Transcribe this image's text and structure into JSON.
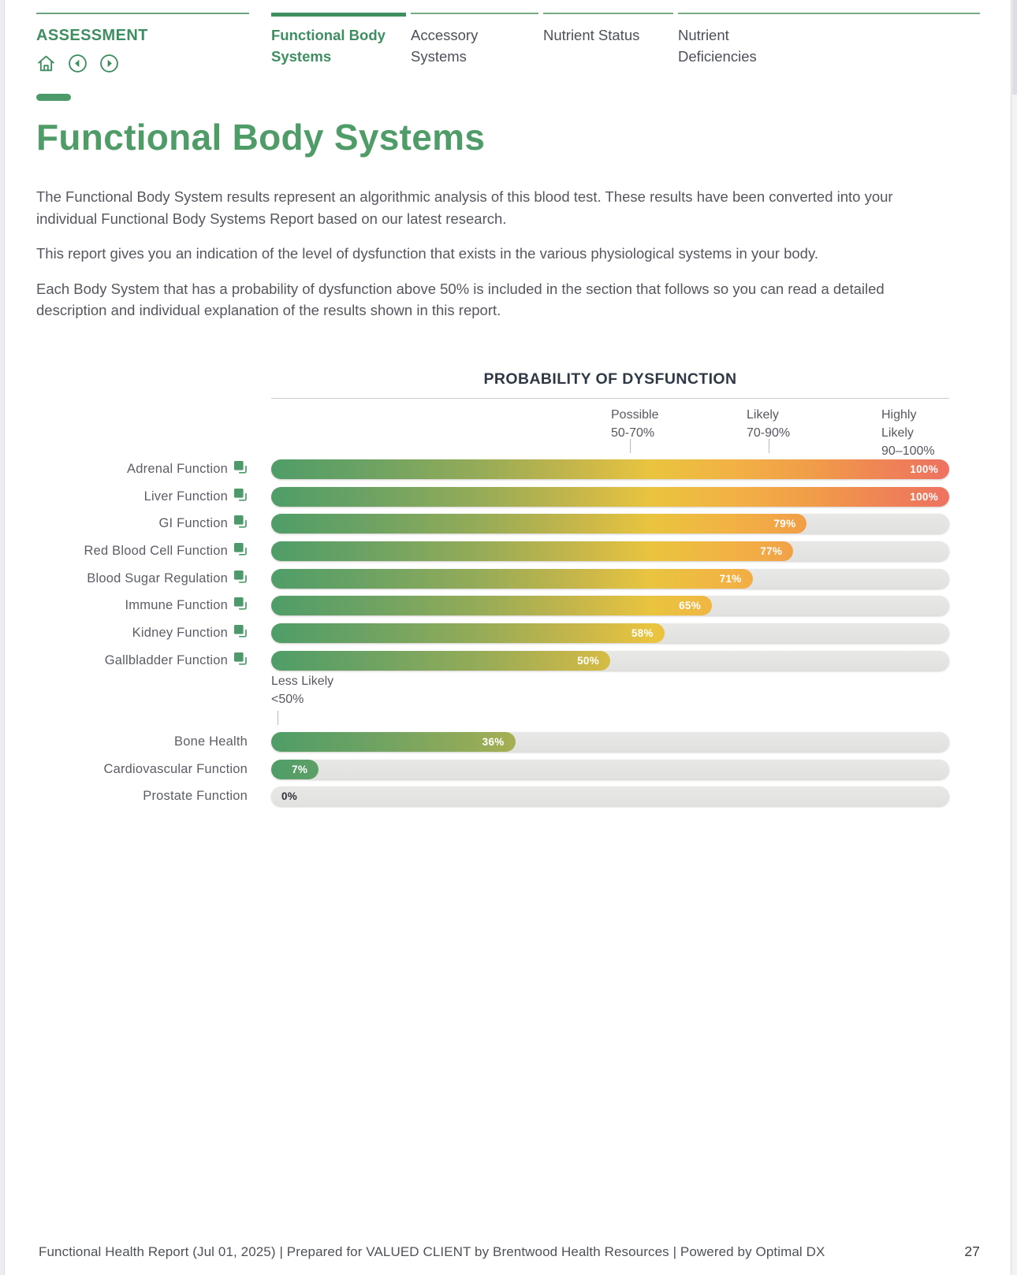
{
  "nav": {
    "section_label": "ASSESSMENT",
    "icons": [
      "home-icon",
      "prev-page-icon",
      "next-page-icon"
    ],
    "tabs": [
      {
        "label": "Functional Body Systems",
        "active": true
      },
      {
        "label": "Accessory Systems",
        "active": false
      },
      {
        "label": "Nutrient Status",
        "active": false
      },
      {
        "label": "Nutrient Deficiencies",
        "active": false
      }
    ]
  },
  "page": {
    "title": "Functional Body Systems",
    "paragraphs": [
      "The Functional Body System results represent an algorithmic analysis of this blood test. These results have been converted into your individual Functional Body Systems Report based on our latest research.",
      "This report gives you an indication of the level of dysfunction that exists in the various physiological systems in your body.",
      "Each Body System that has a probability of dysfunction above 50% is included in the section that follows so you can read a detailed description and individual explanation of the results shown in this report."
    ]
  },
  "chart_data": {
    "type": "bar",
    "orientation": "horizontal",
    "title": "PROBABILITY OF DYSFUNCTION",
    "xlim": [
      0,
      100
    ],
    "unit": "%",
    "zones": [
      {
        "label": "Possible",
        "range": "50-70%"
      },
      {
        "label": "Likely",
        "range": "70-90%"
      },
      {
        "label": "Highly Likely",
        "range": "90–100%"
      }
    ],
    "below_zone": {
      "label": "Less Likely",
      "range": "<50%"
    },
    "categories": [
      "Adrenal Function",
      "Liver Function",
      "GI Function",
      "Red Blood Cell Function",
      "Blood Sugar Regulation",
      "Immune Function",
      "Kidney Function",
      "Gallbladder Function",
      "Bone Health",
      "Cardiovascular Function",
      "Prostate Function"
    ],
    "values": [
      100,
      100,
      79,
      77,
      71,
      65,
      58,
      50,
      36,
      7,
      0
    ],
    "rows_above": [
      {
        "label": "Adrenal Function",
        "value": 100,
        "link_icon": true
      },
      {
        "label": "Liver Function",
        "value": 100,
        "link_icon": true
      },
      {
        "label": "GI Function",
        "value": 79,
        "link_icon": true
      },
      {
        "label": "Red Blood Cell Function",
        "value": 77,
        "link_icon": true
      },
      {
        "label": "Blood Sugar Regulation",
        "value": 71,
        "link_icon": true
      },
      {
        "label": "Immune Function",
        "value": 65,
        "link_icon": true
      },
      {
        "label": "Kidney Function",
        "value": 58,
        "link_icon": true
      },
      {
        "label": "Gallbladder Function",
        "value": 50,
        "link_icon": true
      }
    ],
    "rows_below": [
      {
        "label": "Bone Health",
        "value": 36,
        "link_icon": false
      },
      {
        "label": "Cardiovascular Function",
        "value": 7,
        "link_icon": false
      },
      {
        "label": "Prostate Function",
        "value": 0,
        "link_icon": false
      }
    ],
    "colors": {
      "gradient_start": "#4f9d68",
      "gradient_mid": "#e9c43f",
      "gradient_end": "#ee7261",
      "track": "#e4e4e3",
      "accent_green": "#3f8e61",
      "title_green": "#4f9c68",
      "heading_dark": "#2e3945",
      "text_gray": "#54575e"
    },
    "legend_position": "none",
    "grid": false
  },
  "footer": {
    "text": "Functional Health Report (Jul 01, 2025) | Prepared for VALUED CLIENT by Brentwood Health Resources | Powered by Optimal DX",
    "page_number": "27"
  }
}
